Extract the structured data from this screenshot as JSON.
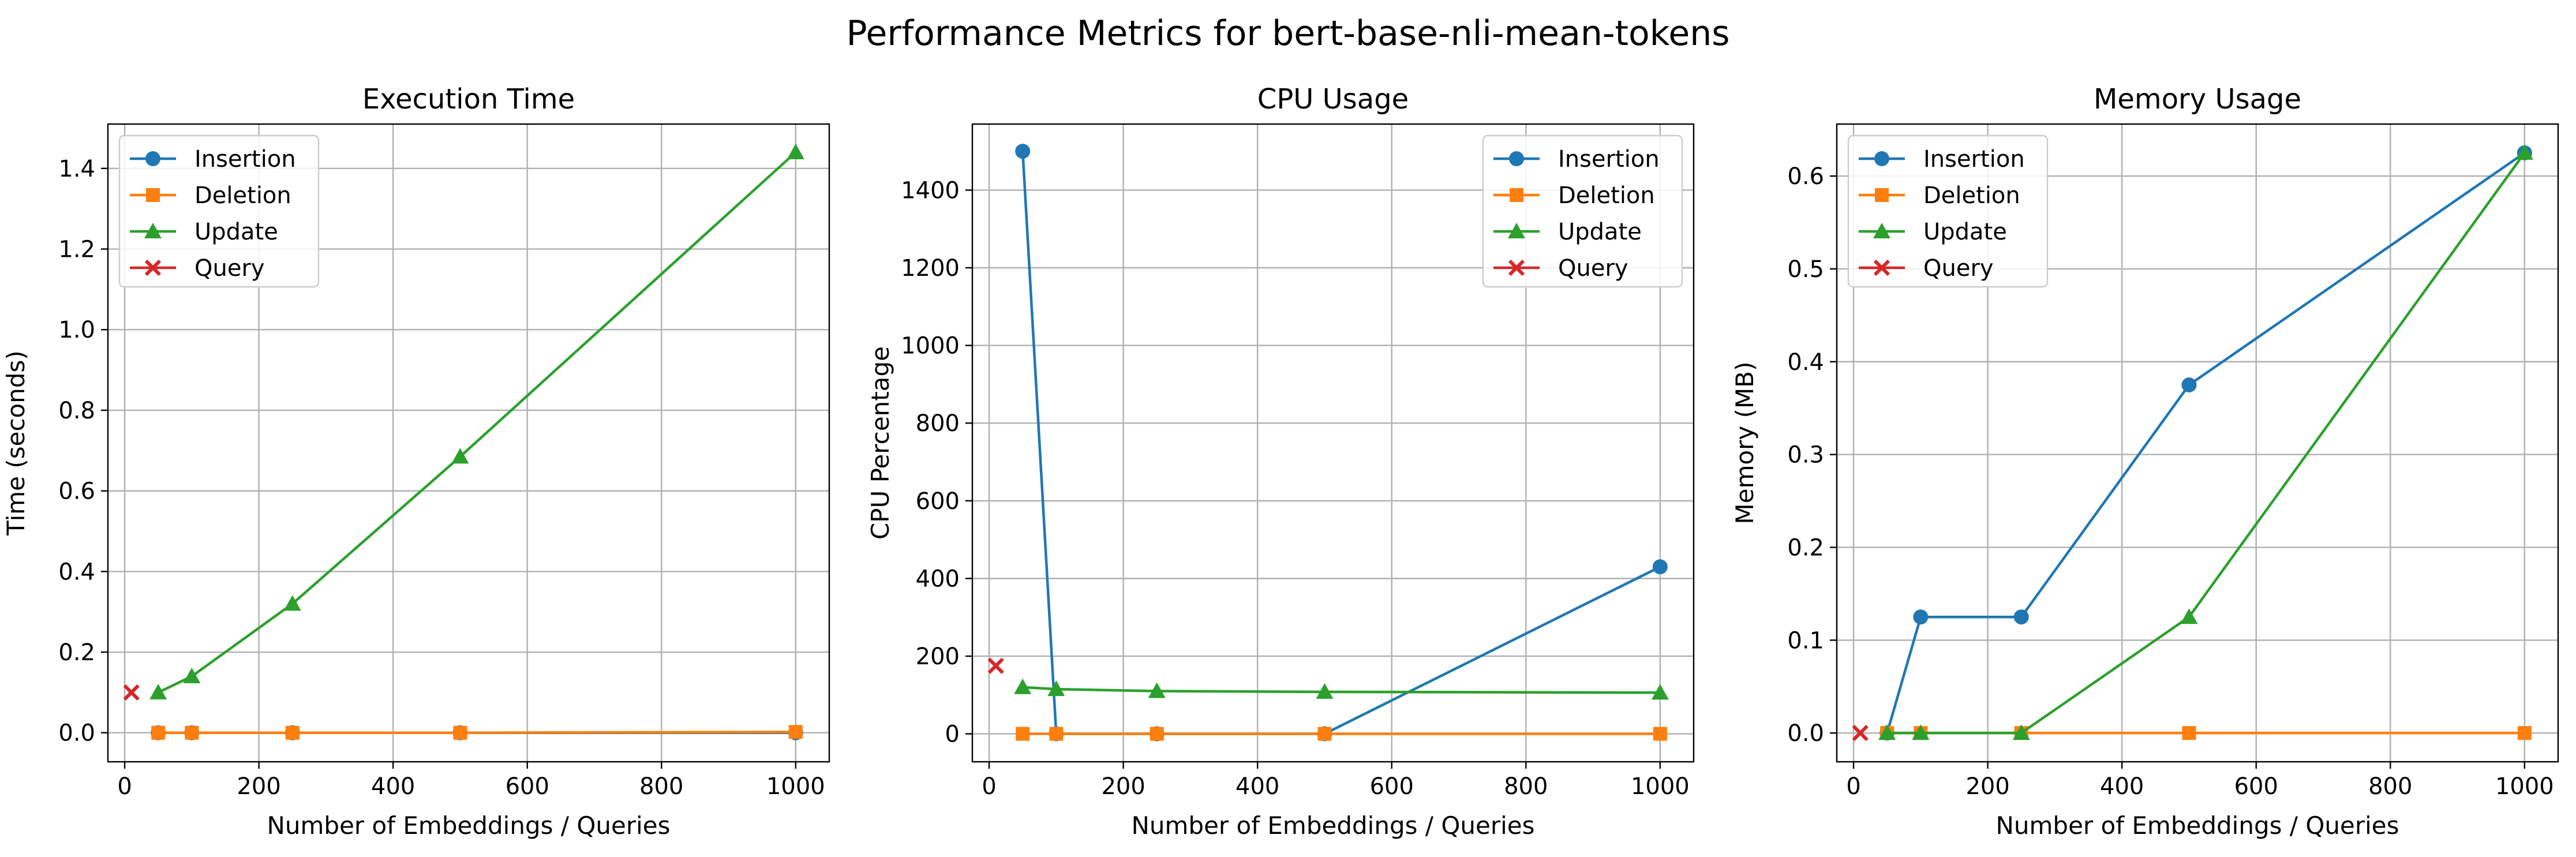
{
  "figure": {
    "title": "Performance Metrics for bert-base-nli-mean-tokens"
  },
  "chart_data": [
    {
      "type": "line",
      "title": "Execution Time",
      "xlabel": "Number of Embeddings / Queries",
      "ylabel": "Time (seconds)",
      "xlim": [
        -25,
        1050
      ],
      "ylim": [
        -0.072,
        1.51
      ],
      "xticks": [
        0,
        200,
        400,
        600,
        800,
        1000
      ],
      "yticks": [
        0.0,
        0.2,
        0.4,
        0.6,
        0.8,
        1.0,
        1.2,
        1.4
      ],
      "ytick_labels": [
        "0.0",
        "0.2",
        "0.4",
        "0.6",
        "0.8",
        "1.0",
        "1.2",
        "1.4"
      ],
      "grid": true,
      "legend_position": "upper-left",
      "series": [
        {
          "name": "Insertion",
          "color": "#1f77b4",
          "marker": "circle",
          "x": [
            50,
            100,
            250,
            500,
            1000
          ],
          "y": [
            0.0,
            0.0,
            0.0,
            0.0,
            0.0
          ]
        },
        {
          "name": "Deletion",
          "color": "#ff7f0e",
          "marker": "square",
          "x": [
            50,
            100,
            250,
            500,
            1000
          ],
          "y": [
            0.0,
            0.0,
            0.0,
            0.0,
            0.002
          ]
        },
        {
          "name": "Update",
          "color": "#2ca02c",
          "marker": "triangle",
          "x": [
            50,
            100,
            250,
            500,
            1000
          ],
          "y": [
            0.1,
            0.14,
            0.32,
            0.685,
            1.44
          ]
        },
        {
          "name": "Query",
          "color": "#d62728",
          "marker": "x",
          "x": [
            10
          ],
          "y": [
            0.1
          ]
        }
      ]
    },
    {
      "type": "line",
      "title": "CPU Usage",
      "xlabel": "Number of Embeddings / Queries",
      "ylabel": "CPU Percentage",
      "xlim": [
        -25,
        1050
      ],
      "ylim": [
        -72,
        1570
      ],
      "xticks": [
        0,
        200,
        400,
        600,
        800,
        1000
      ],
      "yticks": [
        0,
        200,
        400,
        600,
        800,
        1000,
        1200,
        1400
      ],
      "ytick_labels": [
        "0",
        "200",
        "400",
        "600",
        "800",
        "1000",
        "1200",
        "1400"
      ],
      "grid": true,
      "legend_position": "upper-right",
      "series": [
        {
          "name": "Insertion",
          "color": "#1f77b4",
          "marker": "circle",
          "x": [
            50,
            100,
            250,
            500,
            1000
          ],
          "y": [
            1500,
            0,
            0,
            0,
            430
          ]
        },
        {
          "name": "Deletion",
          "color": "#ff7f0e",
          "marker": "square",
          "x": [
            50,
            100,
            250,
            500,
            1000
          ],
          "y": [
            0,
            0,
            0,
            0,
            0
          ]
        },
        {
          "name": "Update",
          "color": "#2ca02c",
          "marker": "triangle",
          "x": [
            50,
            100,
            250,
            500,
            1000
          ],
          "y": [
            120,
            115,
            110,
            108,
            106
          ]
        },
        {
          "name": "Query",
          "color": "#d62728",
          "marker": "x",
          "x": [
            10
          ],
          "y": [
            175
          ]
        }
      ]
    },
    {
      "type": "line",
      "title": "Memory Usage",
      "xlabel": "Number of Embeddings / Queries",
      "ylabel": "Memory (MB)",
      "xlim": [
        -25,
        1050
      ],
      "ylim": [
        -0.031,
        0.656
      ],
      "xticks": [
        0,
        200,
        400,
        600,
        800,
        1000
      ],
      "yticks": [
        0.0,
        0.1,
        0.2,
        0.3,
        0.4,
        0.5,
        0.6
      ],
      "ytick_labels": [
        "0.0",
        "0.1",
        "0.2",
        "0.3",
        "0.4",
        "0.5",
        "0.6"
      ],
      "grid": true,
      "legend_position": "upper-left",
      "series": [
        {
          "name": "Insertion",
          "color": "#1f77b4",
          "marker": "circle",
          "x": [
            50,
            100,
            250,
            500,
            1000
          ],
          "y": [
            0.0,
            0.125,
            0.125,
            0.375,
            0.625
          ]
        },
        {
          "name": "Deletion",
          "color": "#ff7f0e",
          "marker": "square",
          "x": [
            50,
            100,
            250,
            500,
            1000
          ],
          "y": [
            0.0,
            0.0,
            0.0,
            0.0,
            0.0
          ]
        },
        {
          "name": "Update",
          "color": "#2ca02c",
          "marker": "triangle",
          "x": [
            50,
            100,
            250,
            500,
            1000
          ],
          "y": [
            0.0,
            0.0,
            0.0,
            0.125,
            0.625
          ]
        },
        {
          "name": "Query",
          "color": "#d62728",
          "marker": "x",
          "x": [
            10
          ],
          "y": [
            0.0
          ]
        }
      ]
    }
  ]
}
